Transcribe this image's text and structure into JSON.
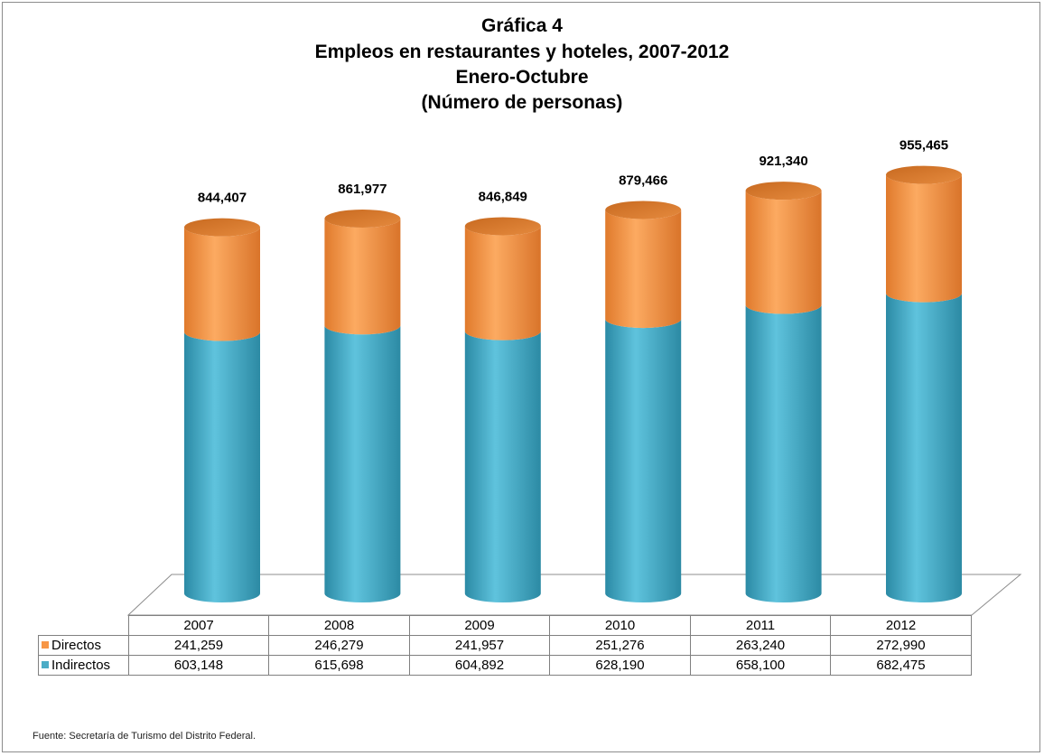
{
  "chart_data": {
    "type": "bar",
    "stacked": true,
    "title": [
      "Gráfica 4",
      "Empleos en restaurantes y hoteles, 2007-2012",
      "Enero-Octubre",
      "(Número de personas)"
    ],
    "categories": [
      "2007",
      "2008",
      "2009",
      "2010",
      "2011",
      "2012"
    ],
    "series": [
      {
        "name": "Directos",
        "color": "#f79646",
        "values": [
          241259,
          246279,
          241957,
          251276,
          263240,
          272990
        ],
        "labels": [
          "241,259",
          "246,279",
          "241,957",
          "251,276",
          "263,240",
          "272,990"
        ]
      },
      {
        "name": "Indirectos",
        "color": "#4bacc6",
        "values": [
          603148,
          615698,
          604892,
          628190,
          658100,
          682475
        ],
        "labels": [
          "603,148",
          "615,698",
          "604,892",
          "628,190",
          "658,100",
          "682,475"
        ]
      }
    ],
    "totals": [
      844407,
      861977,
      846849,
      879466,
      921340,
      955465
    ],
    "total_labels": [
      "844,407",
      "861,977",
      "846,849",
      "879,466",
      "921,340",
      "955,465"
    ],
    "data_table": true,
    "legend": "in data table",
    "grid": false
  },
  "source_note": "Fuente: Secretaría de Turismo del Distrito Federal."
}
